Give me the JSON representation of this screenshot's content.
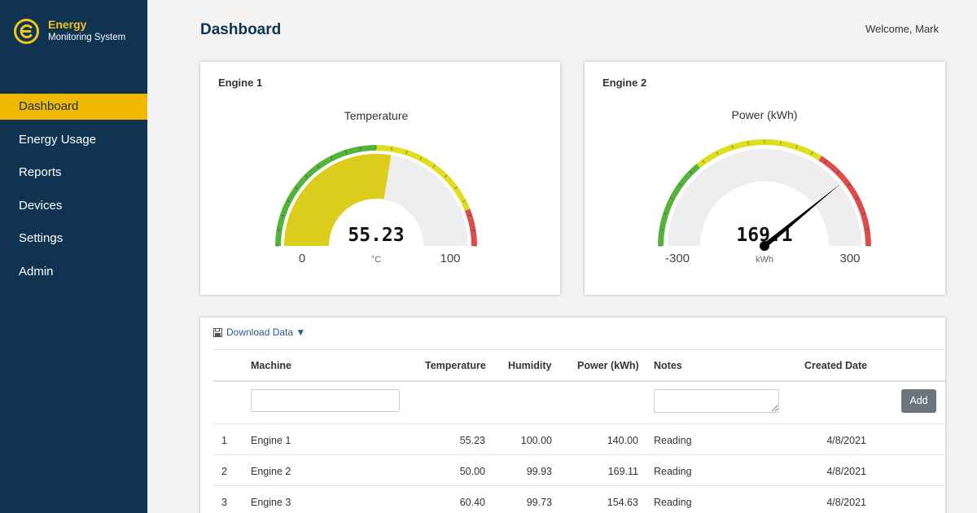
{
  "brand": {
    "title": "Energy",
    "subtitle": "Monitoring System"
  },
  "nav": {
    "items": [
      {
        "label": "Dashboard"
      },
      {
        "label": "Energy Usage"
      },
      {
        "label": "Reports"
      },
      {
        "label": "Devices"
      },
      {
        "label": "Settings"
      },
      {
        "label": "Admin"
      }
    ]
  },
  "header": {
    "title": "Dashboard",
    "welcome": "Welcome, Mark"
  },
  "gauges": [
    {
      "card_title": "Engine 1",
      "title": "Temperature",
      "value": 55.23,
      "value_text": "55.23",
      "unit": "°C",
      "min": 0,
      "max": 100,
      "min_label": "0",
      "max_label": "100",
      "style": "bar",
      "bar_color": "#dccc1c"
    },
    {
      "card_title": "Engine 2",
      "title": "Power (kWh)",
      "value": 169.1,
      "value_text": "169.1",
      "unit": "kWh",
      "min": -300,
      "max": 300,
      "min_label": "-300",
      "max_label": "300",
      "style": "needle",
      "needle_color": "#000000"
    }
  ],
  "colors": {
    "green": "#55b33b",
    "yellow": "#dede1f",
    "red": "#dd4d4d",
    "track": "#eeeeee"
  },
  "table": {
    "download_label": "Download Data ▼",
    "headers": {
      "machine": "Machine",
      "temperature": "Temperature",
      "humidity": "Humidity",
      "power": "Power (kWh)",
      "notes": "Notes",
      "created": "Created Date"
    },
    "add_label": "Add",
    "rows": [
      {
        "index": "1",
        "machine": "Engine 1",
        "temperature": "55.23",
        "humidity": "100.00",
        "power": "140.00",
        "notes": "Reading",
        "created": "4/8/2021"
      },
      {
        "index": "2",
        "machine": "Engine 2",
        "temperature": "50.00",
        "humidity": "99.93",
        "power": "169.11",
        "notes": "Reading",
        "created": "4/8/2021"
      },
      {
        "index": "3",
        "machine": "Engine 3",
        "temperature": "60.40",
        "humidity": "99.73",
        "power": "154.63",
        "notes": "Reading",
        "created": "4/8/2021"
      }
    ]
  }
}
